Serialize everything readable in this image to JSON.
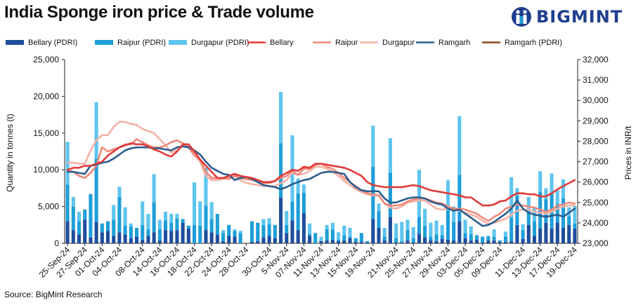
{
  "header": {
    "title": "India Sponge iron price & Trade volume",
    "brand": "BIGMINT"
  },
  "footer": {
    "source": "Source: BigMint Research"
  },
  "chart_data": {
    "type": "bar",
    "ylabel": "Quantity in tonnes (t)",
    "y2label": "Prices in INR/t",
    "ylim": [
      0,
      25000
    ],
    "y2lim": [
      23000,
      32000
    ],
    "y_ticks": [
      "0",
      "5,000",
      "10,000",
      "15,000",
      "20,000",
      "25,000"
    ],
    "y2_ticks": [
      "23,000",
      "24,000",
      "25,000",
      "26,000",
      "27,000",
      "28,000",
      "29,000",
      "30,000",
      "31,000",
      "32,000"
    ],
    "x_tick_labels": [
      "25-Sep-24",
      "27-Sep-24",
      "01-Oct-24",
      "04-Oct-24",
      "08-Oct-24",
      "14-Oct-24",
      "16-Oct-24",
      "18-Oct-24",
      "22-Oct-24",
      "24-Oct-24",
      "28-Oct-24",
      "30-Oct-24",
      "5-Nov-24",
      "07-Nov-24",
      "11-Nov-24",
      "13-Nov-24",
      "15-Nov-24",
      "19-Nov-24",
      "21-Nov-24",
      "25-Nov-24",
      "27-Nov-24",
      "29-Nov-24",
      "03-Dec-24",
      "05-Dec-24",
      "09-Dec-24",
      "11-Dec-24",
      "13-Dec-24",
      "17-Dec-24",
      "19-Dec-24"
    ],
    "legend": [
      {
        "name": "Bellary (PDRI)",
        "kind": "bar",
        "color": "#1f4e9c"
      },
      {
        "name": "Raipur (PDRI)",
        "kind": "bar",
        "color": "#1e9ed9"
      },
      {
        "name": "Durgapur (PDRI)",
        "kind": "bar",
        "color": "#5ec5ee"
      },
      {
        "name": "Bellary",
        "kind": "line",
        "color": "#e03a3a"
      },
      {
        "name": "Raipur",
        "kind": "line",
        "color": "#f08878"
      },
      {
        "name": "Durgapur",
        "kind": "line",
        "color": "#f4b0a6"
      },
      {
        "name": "Ramgarh",
        "kind": "line",
        "color": "#2a5d8f"
      },
      {
        "name": "Ramgarh (PDRI)",
        "kind": "line",
        "color": "#8b4a1e"
      }
    ],
    "bar_series": [
      {
        "name": "Bellary (PDRI)",
        "values": [
          3000,
          1800,
          1200,
          3200,
          800,
          2900,
          1500,
          1700,
          1000,
          1500,
          1200,
          700,
          900,
          500,
          1000,
          1500,
          400,
          1800,
          1700,
          1800,
          2800,
          2000,
          0,
          0,
          1800,
          1500,
          1200,
          300,
          1000,
          900,
          0,
          0,
          200,
          300,
          800,
          1000,
          700,
          6200,
          1400,
          3100,
          1800,
          4100,
          1000,
          0,
          300,
          400,
          500,
          300,
          400,
          700,
          200,
          200,
          100,
          3300,
          2100,
          400,
          3600,
          100,
          100,
          400,
          100,
          1300,
          800,
          400,
          300,
          600,
          500,
          400,
          3000,
          700,
          400,
          500,
          100,
          400,
          400,
          200,
          200,
          300,
          2500,
          600,
          2500,
          1000,
          2000,
          2800,
          2000,
          2800,
          2100,
          2500,
          2000
        ]
      },
      {
        "name": "Raipur (PDRI)",
        "values": [
          5000,
          3200,
          1800,
          1400,
          5900,
          8600,
          1200,
          1300,
          2200,
          4800,
          1200,
          1600,
          1200,
          2000,
          900,
          4100,
          1500,
          1300,
          1100,
          1600,
          500,
          400,
          2500,
          2400,
          3300,
          1800,
          2800,
          1100,
          1500,
          800,
          1400,
          0,
          2800,
          2500,
          1700,
          1600,
          1800,
          7400,
          1100,
          2600,
          5000,
          2800,
          300,
          1400,
          0,
          1500,
          1400,
          200,
          700,
          200,
          500,
          1200,
          200,
          7100,
          2300,
          500,
          6000,
          600,
          200,
          1400,
          600,
          2300,
          1600,
          500,
          900,
          500,
          4000,
          2500,
          6300,
          700,
          800,
          600,
          800,
          600,
          500,
          200,
          700,
          3200,
          4000,
          1200,
          1800,
          2000,
          5000,
          3200,
          4800,
          2600,
          4000,
          1200,
          700
        ]
      },
      {
        "name": "Durgapur (PDRI)",
        "values": [
          5800,
          1300,
          1300,
          0,
          0,
          7700,
          0,
          0,
          2000,
          1400,
          2500,
          400,
          0,
          3200,
          2100,
          3800,
          1300,
          1200,
          1200,
          600,
          0,
          0,
          5800,
          3300,
          5200,
          2300,
          0,
          400,
          0,
          200,
          300,
          0,
          0,
          0,
          800,
          800,
          0,
          7000,
          1900,
          9000,
          2000,
          1100,
          1400,
          0,
          600,
          600,
          900,
          1000,
          1300,
          1200,
          0,
          0,
          0,
          5600,
          1000,
          1200,
          4700,
          2000,
          2600,
          1400,
          1500,
          6400,
          2300,
          1900,
          1900,
          1400,
          4100,
          2100,
          8000,
          1800,
          1100,
          0,
          0,
          0,
          1000,
          0,
          700,
          5500,
          1000,
          800,
          2000,
          2000,
          2800,
          1500,
          2700,
          1800,
          2600,
          1200,
          2400
        ]
      }
    ],
    "bar_x_index": [
      0,
      1,
      2,
      3,
      4,
      5,
      6,
      7,
      8,
      9,
      10,
      11,
      12,
      13,
      14,
      15,
      16,
      17,
      18,
      19,
      20,
      21,
      22,
      23,
      24,
      25,
      26,
      27,
      28,
      29,
      30,
      31,
      32,
      33,
      34,
      35,
      36,
      37,
      38,
      39,
      40,
      41,
      42,
      43,
      44,
      45,
      46,
      47,
      48,
      49,
      50,
      51,
      52,
      53,
      54,
      55,
      56,
      57,
      58,
      59,
      60,
      61,
      62,
      63,
      64,
      65,
      66,
      67,
      68,
      69,
      70,
      71,
      72,
      73,
      74,
      75,
      76,
      77,
      78,
      79,
      80,
      81,
      82,
      83,
      84,
      85,
      86,
      87,
      88
    ],
    "line_x_count": 89,
    "line_series": [
      {
        "name": "Bellary",
        "values": [
          26600,
          26700,
          26700,
          26800,
          26800,
          26900,
          27000,
          27300,
          27500,
          27700,
          27800,
          27900,
          27850,
          27850,
          27750,
          27600,
          27500,
          27350,
          27250,
          27500,
          27850,
          27850,
          27500,
          27100,
          26800,
          26500,
          26200,
          26200,
          26300,
          26400,
          26300,
          26250,
          26200,
          26100,
          26000,
          26000,
          26050,
          26300,
          26450,
          26600,
          26550,
          26750,
          26700,
          26900,
          26900,
          26850,
          26800,
          26750,
          26700,
          26600,
          26450,
          26300,
          26000,
          25850,
          25800,
          25750,
          25750,
          25750,
          25750,
          25800,
          25850,
          25800,
          25700,
          25600,
          25550,
          25500,
          25450,
          25400,
          25350,
          25250,
          25250,
          25050,
          24850,
          24850,
          24900,
          25050,
          25100,
          25300,
          25450,
          25450,
          25400,
          25400,
          25300,
          25300,
          25450,
          25650,
          25800,
          25950,
          26100
        ]
      },
      {
        "name": "Raipur",
        "values": [
          26600,
          26500,
          26300,
          26200,
          26450,
          26800,
          27700,
          27500,
          27600,
          27700,
          27850,
          27850,
          28100,
          27950,
          27800,
          27700,
          27700,
          27800,
          27950,
          28050,
          27900,
          27700,
          27300,
          27100,
          26500,
          26200,
          26200,
          26200,
          26150,
          26300,
          26200,
          26150,
          26100,
          26050,
          25950,
          25950,
          26050,
          26200,
          26300,
          26550,
          26350,
          26650,
          26650,
          26850,
          26900,
          26750,
          26650,
          26450,
          26200,
          26000,
          25800,
          25600,
          25450,
          25400,
          25350,
          24950,
          24850,
          24850,
          24900,
          25050,
          25150,
          25200,
          25200,
          25100,
          25000,
          24950,
          24800,
          24700,
          24700,
          24650,
          24550,
          24450,
          24250,
          24100,
          24300,
          24450,
          24700,
          24800,
          24900,
          24850,
          24800,
          24750,
          24650,
          24550,
          24650,
          24850,
          24900,
          25000,
          24950
        ]
      },
      {
        "name": "Durgapur",
        "values": [
          26950,
          26950,
          26900,
          26900,
          27550,
          28050,
          28300,
          28300,
          28700,
          28950,
          28950,
          28850,
          28800,
          28600,
          28500,
          28400,
          28100,
          27800,
          27450,
          27550,
          27750,
          27750,
          27350,
          27000,
          26300,
          26100,
          26100,
          26150,
          26200,
          26300,
          26100,
          25950,
          25900,
          25850,
          25800,
          25800,
          25800,
          25950,
          26100,
          26450,
          26350,
          26400,
          26550,
          26750,
          26750,
          26650,
          26500,
          26300,
          26050,
          25850,
          25650,
          25500,
          25400,
          25350,
          25350,
          24950,
          24750,
          24700,
          24800,
          25000,
          25050,
          25100,
          25100,
          24900,
          24700,
          24650,
          24700,
          24650,
          24600,
          24500,
          24400,
          24300,
          24100,
          23950,
          24000,
          24100,
          24200,
          24400,
          24600,
          24650,
          24650,
          24550,
          24500,
          24450,
          24550,
          24700,
          24800,
          24850,
          24850
        ]
      },
      {
        "name": "Ramgarh",
        "values": [
          26500,
          26500,
          26450,
          26400,
          26800,
          26850,
          26950,
          27000,
          27150,
          27350,
          27550,
          27650,
          27700,
          27700,
          27700,
          27650,
          27650,
          27600,
          27550,
          27700,
          27750,
          27700,
          27550,
          27350,
          27000,
          26700,
          26550,
          26400,
          26350,
          26100,
          26200,
          26250,
          26150,
          26000,
          25850,
          25800,
          25750,
          25650,
          25750,
          25900,
          26000,
          26100,
          26150,
          26300,
          26450,
          26500,
          26500,
          26450,
          26400,
          26000,
          25750,
          25600,
          25550,
          25550,
          25550,
          25200,
          25000,
          25000,
          25100,
          25200,
          25250,
          25250,
          25200,
          25050,
          24950,
          24900,
          24700,
          24600,
          24650,
          24450,
          24250,
          24050,
          23850,
          23900,
          24050,
          24250,
          24450,
          24700,
          25100,
          24700,
          24500,
          24400,
          24350,
          24300,
          24350,
          24400,
          24300,
          24500,
          24700
        ]
      }
    ]
  }
}
